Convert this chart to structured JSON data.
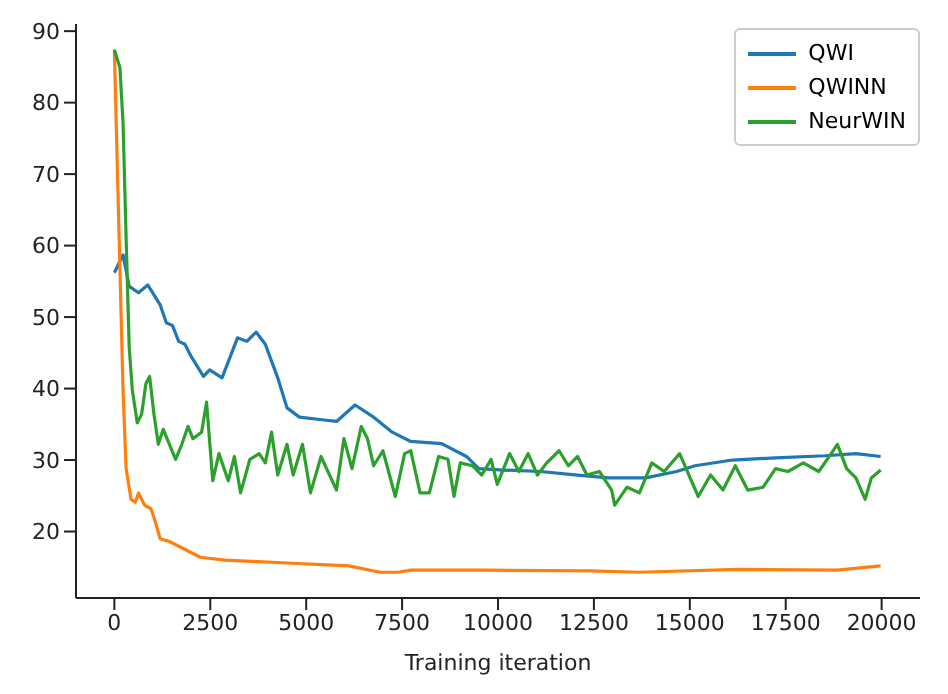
{
  "chart_data": {
    "type": "line",
    "xlabel": "Training iteration",
    "xlim": [
      -1000,
      21000
    ],
    "xticks": [
      0,
      2500,
      5000,
      7500,
      10000,
      12500,
      15000,
      17500,
      20000
    ],
    "ylim": [
      10.7,
      91
    ],
    "yticks": [
      20,
      30,
      40,
      50,
      60,
      70,
      80,
      90
    ],
    "grid": false,
    "legend": "top right",
    "marker": "none",
    "line_style": "solid",
    "series": [
      {
        "name": "QWI",
        "color": "#1f77b4",
        "x": [
          0,
          226,
          387,
          629,
          871,
          1194,
          1355,
          1516,
          1677,
          1839,
          2000,
          2323,
          2484,
          2807,
          3210,
          3452,
          3694,
          3935,
          4258,
          4500,
          4823,
          5468,
          5790,
          6274,
          6758,
          7242,
          7726,
          8532,
          9178,
          9500,
          10141,
          11108,
          12075,
          12881,
          13848,
          14654,
          15138,
          16105,
          17234,
          18523,
          19329,
          19974
        ],
        "values": [
          56.2,
          58.7,
          54.3,
          53.4,
          54.5,
          51.7,
          49.2,
          48.8,
          46.6,
          46.2,
          44.5,
          41.7,
          42.6,
          41.5,
          47.1,
          46.6,
          47.9,
          46.2,
          41.5,
          37.3,
          36.0,
          35.6,
          35.4,
          37.7,
          36.0,
          33.9,
          32.6,
          32.3,
          30.5,
          28.8,
          28.6,
          28.4,
          27.9,
          27.5,
          27.5,
          28.4,
          29.2,
          30.0,
          30.3,
          30.6,
          30.9,
          30.5
        ]
      },
      {
        "name": "QWINN",
        "color": "#ff7f0e",
        "x": [
          0,
          64,
          145,
          226,
          306,
          435,
          548,
          629,
          790,
          952,
          1032,
          1194,
          1435,
          2242,
          2887,
          4500,
          6113,
          6919,
          7403,
          7726,
          9661,
          12397,
          13687,
          16266,
          18846,
          19974
        ],
        "values": [
          87.4,
          73.8,
          56.8,
          39.8,
          28.8,
          24.5,
          24.1,
          25.4,
          23.7,
          23.2,
          22.0,
          19.0,
          18.6,
          16.4,
          16.0,
          15.6,
          15.2,
          14.3,
          14.3,
          14.6,
          14.6,
          14.5,
          14.3,
          14.7,
          14.6,
          15.2
        ]
      },
      {
        "name": "NeurWIN",
        "color": "#2ca02c",
        "x": [
          0,
          145,
          226,
          306,
          387,
          468,
          597,
          710,
          823,
          919,
          1032,
          1145,
          1274,
          1435,
          1597,
          1758,
          1919,
          2048,
          2274,
          2403,
          2565,
          2726,
          2968,
          3129,
          3290,
          3532,
          3774,
          3935,
          4097,
          4258,
          4500,
          4661,
          4903,
          5113,
          5387,
          5790,
          5984,
          6194,
          6436,
          6597,
          6758,
          7000,
          7323,
          7565,
          7726,
          7968,
          8210,
          8452,
          8694,
          8855,
          9016,
          9339,
          9578,
          9820,
          9981,
          10302,
          10544,
          10786,
          11028,
          11270,
          11593,
          11834,
          12075,
          12317,
          12640,
          12962,
          13042,
          13364,
          13687,
          14009,
          14332,
          14735,
          14977,
          15219,
          15541,
          15864,
          16186,
          16508,
          16911,
          17234,
          17556,
          17959,
          18362,
          18685,
          18846,
          19088,
          19329,
          19571,
          19732,
          19974
        ],
        "values": [
          87.4,
          84.9,
          77.2,
          61.1,
          45.8,
          39.8,
          35.2,
          36.4,
          40.7,
          41.7,
          36.4,
          32.2,
          34.3,
          32.2,
          30.1,
          32.2,
          34.7,
          33.0,
          33.9,
          38.1,
          27.1,
          30.9,
          27.1,
          30.5,
          25.4,
          30.1,
          30.9,
          29.6,
          33.9,
          27.9,
          32.2,
          27.9,
          32.2,
          25.4,
          30.5,
          25.8,
          33.0,
          28.8,
          34.7,
          33.0,
          29.2,
          31.3,
          24.9,
          30.9,
          31.3,
          25.4,
          25.4,
          30.5,
          30.1,
          24.9,
          29.6,
          29.2,
          27.9,
          30.1,
          26.6,
          30.9,
          28.4,
          30.9,
          27.9,
          29.6,
          31.3,
          29.2,
          30.5,
          27.9,
          28.4,
          25.8,
          23.7,
          26.2,
          25.4,
          29.6,
          28.4,
          30.9,
          27.9,
          24.9,
          27.9,
          25.8,
          29.2,
          25.8,
          26.2,
          28.8,
          28.4,
          29.6,
          28.4,
          30.9,
          32.2,
          28.8,
          27.5,
          24.5,
          27.5,
          28.6
        ]
      }
    ]
  }
}
